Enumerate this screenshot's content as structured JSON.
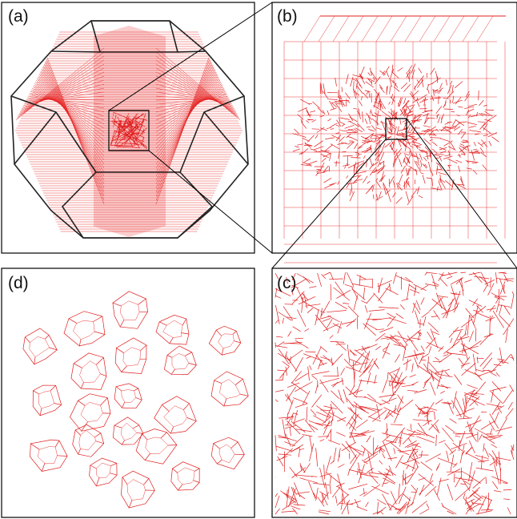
{
  "figure": {
    "panels": [
      {
        "id": "a",
        "label": "(a)"
      },
      {
        "id": "b",
        "label": "(b)"
      },
      {
        "id": "c",
        "label": "(c)"
      },
      {
        "id": "d",
        "label": "(d)"
      }
    ],
    "colors": {
      "wireframe": "#e01c1c",
      "outline": "#222222",
      "frame": "#000000",
      "background": "#ffffff"
    }
  }
}
